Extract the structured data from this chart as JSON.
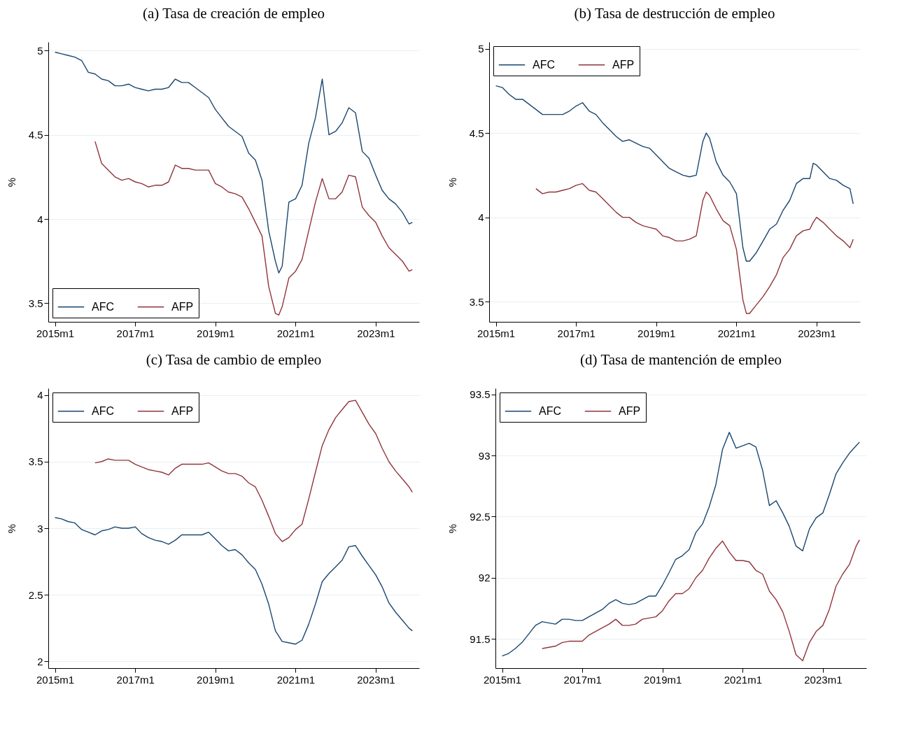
{
  "chart_data": [
    {
      "type": "line",
      "title": "(a) Tasa de creación de empleo",
      "ylabel": "%",
      "x": [
        "2015-01",
        "2015-03",
        "2015-05",
        "2015-07",
        "2015-09",
        "2015-11",
        "2016-01",
        "2016-03",
        "2016-05",
        "2016-07",
        "2016-09",
        "2016-11",
        "2017-01",
        "2017-03",
        "2017-05",
        "2017-07",
        "2017-09",
        "2017-11",
        "2018-01",
        "2018-03",
        "2018-05",
        "2018-07",
        "2018-09",
        "2018-11",
        "2019-01",
        "2019-03",
        "2019-05",
        "2019-07",
        "2019-09",
        "2019-11",
        "2020-01",
        "2020-03",
        "2020-05",
        "2020-07",
        "2020-08",
        "2020-09",
        "2020-11",
        "2021-01",
        "2021-03",
        "2021-05",
        "2021-07",
        "2021-09",
        "2021-11",
        "2022-01",
        "2022-03",
        "2022-05",
        "2022-07",
        "2022-09",
        "2022-11",
        "2023-01",
        "2023-03",
        "2023-05",
        "2023-07",
        "2023-09",
        "2023-11",
        "2023-12"
      ],
      "series": [
        {
          "name": "AFC",
          "color": "#1a476f",
          "values": [
            4.99,
            4.98,
            4.97,
            4.96,
            4.94,
            4.87,
            4.86,
            4.83,
            4.82,
            4.79,
            4.79,
            4.8,
            4.78,
            4.77,
            4.76,
            4.77,
            4.77,
            4.78,
            4.83,
            4.81,
            4.81,
            4.78,
            4.75,
            4.72,
            4.65,
            4.6,
            4.55,
            4.52,
            4.49,
            4.39,
            4.35,
            4.23,
            3.93,
            3.75,
            3.68,
            3.72,
            4.1,
            4.12,
            4.2,
            4.45,
            4.6,
            4.83,
            4.5,
            4.52,
            4.57,
            4.66,
            4.63,
            4.4,
            4.36,
            4.26,
            4.17,
            4.12,
            4.09,
            4.04,
            3.97,
            3.98
          ]
        },
        {
          "name": "AFP",
          "color": "#90353b",
          "values": [
            null,
            null,
            null,
            null,
            null,
            null,
            4.46,
            4.33,
            4.29,
            4.25,
            4.23,
            4.24,
            4.22,
            4.21,
            4.19,
            4.2,
            4.2,
            4.22,
            4.32,
            4.3,
            4.3,
            4.29,
            4.29,
            4.29,
            4.21,
            4.19,
            4.16,
            4.15,
            4.13,
            4.06,
            3.98,
            3.9,
            3.6,
            3.44,
            3.43,
            3.48,
            3.65,
            3.69,
            3.76,
            3.93,
            4.1,
            4.24,
            4.12,
            4.12,
            4.16,
            4.26,
            4.25,
            4.07,
            4.02,
            3.98,
            3.9,
            3.83,
            3.79,
            3.75,
            3.69,
            3.7
          ]
        }
      ],
      "xlim": [
        "2014-11",
        "2024-02"
      ],
      "xticks": [
        {
          "value": "2015-01",
          "label": "2015m1"
        },
        {
          "value": "2017-01",
          "label": "2017m1"
        },
        {
          "value": "2019-01",
          "label": "2019m1"
        },
        {
          "value": "2021-01",
          "label": "2021m1"
        },
        {
          "value": "2023-01",
          "label": "2023m1"
        }
      ],
      "ylim": [
        3.39,
        5.05
      ],
      "yticks": [
        3.5,
        4,
        4.5,
        5
      ],
      "grid": "y",
      "legend": "bottom left"
    },
    {
      "type": "line",
      "title": "(b) Tasa de destrucción de empleo",
      "ylabel": "%",
      "x": [
        "2015-01",
        "2015-03",
        "2015-05",
        "2015-07",
        "2015-09",
        "2015-11",
        "2016-01",
        "2016-03",
        "2016-05",
        "2016-07",
        "2016-09",
        "2016-11",
        "2017-01",
        "2017-03",
        "2017-05",
        "2017-07",
        "2017-09",
        "2017-11",
        "2018-01",
        "2018-03",
        "2018-05",
        "2018-07",
        "2018-09",
        "2018-11",
        "2019-01",
        "2019-03",
        "2019-05",
        "2019-07",
        "2019-09",
        "2019-11",
        "2020-01",
        "2020-03",
        "2020-04",
        "2020-05",
        "2020-07",
        "2020-09",
        "2020-11",
        "2021-01",
        "2021-03",
        "2021-04",
        "2021-05",
        "2021-07",
        "2021-09",
        "2021-11",
        "2022-01",
        "2022-03",
        "2022-05",
        "2022-07",
        "2022-09",
        "2022-11",
        "2022-12",
        "2023-01",
        "2023-03",
        "2023-05",
        "2023-07",
        "2023-09",
        "2023-11",
        "2023-12"
      ],
      "series": [
        {
          "name": "AFC",
          "color": "#1a476f",
          "values": [
            4.78,
            4.77,
            4.73,
            4.7,
            4.7,
            4.67,
            4.64,
            4.61,
            4.61,
            4.61,
            4.61,
            4.63,
            4.66,
            4.68,
            4.63,
            4.61,
            4.56,
            4.52,
            4.48,
            4.45,
            4.46,
            4.44,
            4.42,
            4.41,
            4.37,
            4.33,
            4.29,
            4.27,
            4.25,
            4.24,
            4.25,
            4.45,
            4.5,
            4.47,
            4.33,
            4.25,
            4.21,
            4.14,
            3.82,
            3.74,
            3.74,
            3.79,
            3.86,
            3.93,
            3.96,
            4.04,
            4.1,
            4.2,
            4.23,
            4.23,
            4.32,
            4.31,
            4.27,
            4.23,
            4.22,
            4.19,
            4.17,
            4.08
          ]
        },
        {
          "name": "AFP",
          "color": "#90353b",
          "values": [
            null,
            null,
            null,
            null,
            null,
            null,
            4.17,
            4.14,
            4.15,
            4.15,
            4.16,
            4.17,
            4.19,
            4.2,
            4.16,
            4.15,
            4.11,
            4.07,
            4.03,
            4.0,
            4.0,
            3.97,
            3.95,
            3.94,
            3.93,
            3.89,
            3.88,
            3.86,
            3.86,
            3.87,
            3.89,
            4.1,
            4.15,
            4.13,
            4.05,
            3.98,
            3.95,
            3.81,
            3.51,
            3.43,
            3.43,
            3.48,
            3.53,
            3.59,
            3.66,
            3.76,
            3.81,
            3.89,
            3.92,
            3.93,
            3.97,
            4.0,
            3.97,
            3.93,
            3.89,
            3.86,
            3.82,
            3.87
          ]
        }
      ],
      "xlim": [
        "2014-11",
        "2024-02"
      ],
      "xticks": [
        {
          "value": "2015-01",
          "label": "2015m1"
        },
        {
          "value": "2017-01",
          "label": "2017m1"
        },
        {
          "value": "2019-01",
          "label": "2019m1"
        },
        {
          "value": "2021-01",
          "label": "2021m1"
        },
        {
          "value": "2023-01",
          "label": "2023m1"
        }
      ],
      "ylim": [
        3.38,
        5.04
      ],
      "yticks": [
        3.5,
        4,
        4.5,
        5
      ],
      "grid": "y",
      "legend": "top left"
    },
    {
      "type": "line",
      "title": "(c) Tasa de cambio de empleo",
      "ylabel": "%",
      "x": [
        "2015-01",
        "2015-03",
        "2015-05",
        "2015-07",
        "2015-09",
        "2015-11",
        "2016-01",
        "2016-03",
        "2016-05",
        "2016-07",
        "2016-09",
        "2016-11",
        "2017-01",
        "2017-03",
        "2017-05",
        "2017-07",
        "2017-09",
        "2017-11",
        "2018-01",
        "2018-03",
        "2018-05",
        "2018-07",
        "2018-09",
        "2018-11",
        "2019-01",
        "2019-03",
        "2019-05",
        "2019-07",
        "2019-09",
        "2019-11",
        "2020-01",
        "2020-03",
        "2020-05",
        "2020-07",
        "2020-09",
        "2020-11",
        "2021-01",
        "2021-03",
        "2021-05",
        "2021-07",
        "2021-09",
        "2021-11",
        "2022-01",
        "2022-03",
        "2022-05",
        "2022-07",
        "2022-09",
        "2022-11",
        "2023-01",
        "2023-03",
        "2023-05",
        "2023-07",
        "2023-09",
        "2023-11",
        "2023-12"
      ],
      "series": [
        {
          "name": "AFC",
          "color": "#1a476f",
          "values": [
            3.08,
            3.07,
            3.05,
            3.04,
            2.99,
            2.97,
            2.95,
            2.98,
            2.99,
            3.01,
            3.0,
            3.0,
            3.01,
            2.96,
            2.93,
            2.91,
            2.9,
            2.88,
            2.91,
            2.95,
            2.95,
            2.95,
            2.95,
            2.97,
            2.92,
            2.87,
            2.83,
            2.84,
            2.8,
            2.74,
            2.69,
            2.58,
            2.43,
            2.23,
            2.15,
            2.14,
            2.13,
            2.16,
            2.28,
            2.43,
            2.6,
            2.66,
            2.71,
            2.76,
            2.86,
            2.87,
            2.79,
            2.72,
            2.65,
            2.56,
            2.44,
            2.37,
            2.31,
            2.25,
            2.23
          ]
        },
        {
          "name": "AFP",
          "color": "#90353b",
          "values": [
            null,
            null,
            null,
            null,
            null,
            null,
            3.49,
            3.5,
            3.52,
            3.51,
            3.51,
            3.51,
            3.48,
            3.46,
            3.44,
            3.43,
            3.42,
            3.4,
            3.45,
            3.48,
            3.48,
            3.48,
            3.48,
            3.49,
            3.46,
            3.43,
            3.41,
            3.41,
            3.39,
            3.34,
            3.31,
            3.21,
            3.09,
            2.96,
            2.9,
            2.93,
            2.99,
            3.03,
            3.22,
            3.42,
            3.62,
            3.74,
            3.83,
            3.89,
            3.95,
            3.96,
            3.87,
            3.78,
            3.71,
            3.6,
            3.5,
            3.43,
            3.37,
            3.31,
            3.27
          ]
        }
      ],
      "xlim": [
        "2014-11",
        "2024-02"
      ],
      "xticks": [
        {
          "value": "2015-01",
          "label": "2015m1"
        },
        {
          "value": "2017-01",
          "label": "2017m1"
        },
        {
          "value": "2019-01",
          "label": "2019m1"
        },
        {
          "value": "2021-01",
          "label": "2021m1"
        },
        {
          "value": "2023-01",
          "label": "2023m1"
        }
      ],
      "ylim": [
        1.95,
        4.05
      ],
      "yticks": [
        2,
        2.5,
        3,
        3.5,
        4
      ],
      "grid": "y",
      "legend": "top left"
    },
    {
      "type": "line",
      "title": "(d) Tasa de mantención de empleo",
      "ylabel": "%",
      "x": [
        "2015-01",
        "2015-03",
        "2015-05",
        "2015-07",
        "2015-09",
        "2015-11",
        "2016-01",
        "2016-03",
        "2016-05",
        "2016-07",
        "2016-09",
        "2016-11",
        "2017-01",
        "2017-03",
        "2017-05",
        "2017-07",
        "2017-09",
        "2017-11",
        "2018-01",
        "2018-03",
        "2018-05",
        "2018-07",
        "2018-09",
        "2018-11",
        "2019-01",
        "2019-03",
        "2019-05",
        "2019-07",
        "2019-09",
        "2019-11",
        "2020-01",
        "2020-03",
        "2020-05",
        "2020-07",
        "2020-09",
        "2020-11",
        "2021-01",
        "2021-03",
        "2021-05",
        "2021-07",
        "2021-09",
        "2021-11",
        "2022-01",
        "2022-03",
        "2022-05",
        "2022-07",
        "2022-09",
        "2022-11",
        "2023-01",
        "2023-03",
        "2023-05",
        "2023-07",
        "2023-09",
        "2023-11",
        "2023-12"
      ],
      "series": [
        {
          "name": "AFC",
          "color": "#1a476f",
          "values": [
            91.36,
            91.38,
            91.42,
            91.47,
            91.54,
            91.61,
            91.64,
            91.63,
            91.62,
            91.66,
            91.66,
            91.65,
            91.65,
            91.68,
            91.71,
            91.74,
            91.79,
            91.82,
            91.79,
            91.78,
            91.79,
            91.82,
            91.85,
            91.85,
            91.94,
            92.04,
            92.15,
            92.18,
            92.23,
            92.37,
            92.44,
            92.58,
            92.76,
            93.05,
            93.19,
            93.06,
            93.08,
            93.1,
            93.07,
            92.88,
            92.59,
            92.63,
            92.53,
            92.42,
            92.26,
            92.22,
            92.4,
            92.49,
            92.53,
            92.68,
            92.85,
            92.94,
            93.02,
            93.08,
            93.11
          ]
        },
        {
          "name": "AFP",
          "color": "#90353b",
          "values": [
            null,
            null,
            null,
            null,
            null,
            null,
            91.42,
            91.43,
            91.44,
            91.47,
            91.48,
            91.48,
            91.48,
            91.53,
            91.56,
            91.59,
            91.62,
            91.66,
            91.61,
            91.61,
            91.62,
            91.66,
            91.67,
            91.68,
            91.73,
            91.81,
            91.87,
            91.87,
            91.91,
            92.0,
            92.06,
            92.16,
            92.24,
            92.3,
            92.21,
            92.14,
            92.14,
            92.13,
            92.06,
            92.03,
            91.89,
            91.82,
            91.72,
            91.56,
            91.37,
            91.32,
            91.47,
            91.56,
            91.61,
            91.74,
            91.93,
            92.03,
            92.11,
            92.26,
            92.31
          ]
        }
      ],
      "xlim": [
        "2014-11",
        "2024-02"
      ],
      "xticks": [
        {
          "value": "2015-01",
          "label": "2015m1"
        },
        {
          "value": "2017-01",
          "label": "2017m1"
        },
        {
          "value": "2019-01",
          "label": "2019m1"
        },
        {
          "value": "2021-01",
          "label": "2021m1"
        },
        {
          "value": "2023-01",
          "label": "2023m1"
        }
      ],
      "ylim": [
        91.26,
        93.55
      ],
      "yticks": [
        91.5,
        92,
        92.5,
        93,
        93.5
      ],
      "grid": "y",
      "legend": "top left"
    }
  ]
}
